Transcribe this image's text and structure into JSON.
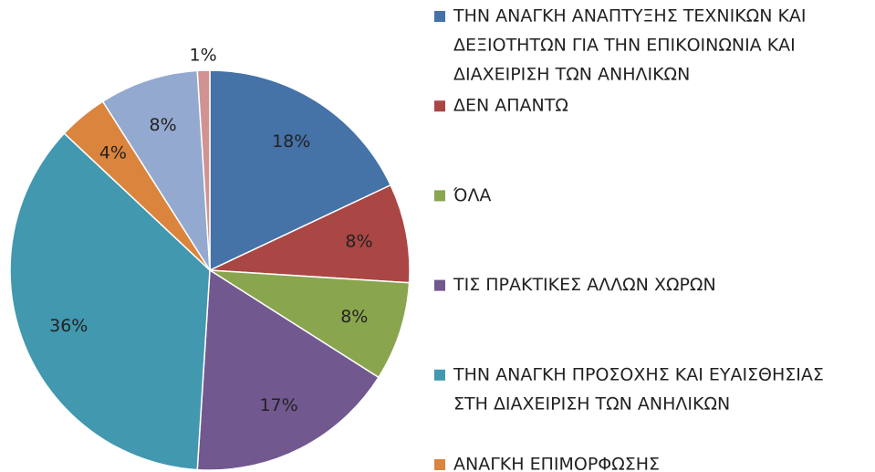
{
  "chart_data": {
    "type": "pie",
    "categories": [
      [
        "ΤΗΝ ΑΝΑΓΚΗ ΑΝΑΠΤΥΞΗΣ ΤΕΧΝΙΚΩΝ ΚΑΙ",
        "ΔΕΞΙΟΤΗΤΩΝ ΓΙΑ ΤΗΝ ΕΠΙΚΟΙΝΩΝΙΑ ΚΑΙ",
        "ΔΙΑΧΕΙΡΙΣΗ ΤΩΝ ΑΝΗΛΙΚΩΝ"
      ],
      [
        "ΔΕΝ ΑΠΑΝΤΩ"
      ],
      [
        "ΌΛΑ"
      ],
      [
        "ΤΙΣ ΠΡΑΚΤΙΚΕΣ ΑΛΛΩΝ ΧΩΡΩΝ"
      ],
      [
        "ΤΗΝ ΑΝΑΓΚΗ ΠΡΟΣΟΧΗΣ ΚΑΙ ΕΥΑΙΣΘΗΣΙΑΣ",
        "ΣΤΗ ΔΙΑΧΕΙΡΙΣΗ ΤΩΝ ΑΝΗΛΙΚΩΝ"
      ],
      [
        "ΑΝΑΓΚΗ ΕΠΙΜΟΡΦΩΣΗΣ"
      ],
      null,
      null
    ],
    "values": [
      18,
      8,
      8,
      17,
      36,
      4,
      8,
      1
    ],
    "value_labels": [
      "18%",
      "8%",
      "8%",
      "17%",
      "36%",
      "4%",
      "8%",
      "1%"
    ],
    "colors": [
      "#4572a7",
      "#aa4643",
      "#89a54e",
      "#71588f",
      "#4198af",
      "#db843d",
      "#93a9cf",
      "#d19392"
    ],
    "legend": "right"
  }
}
